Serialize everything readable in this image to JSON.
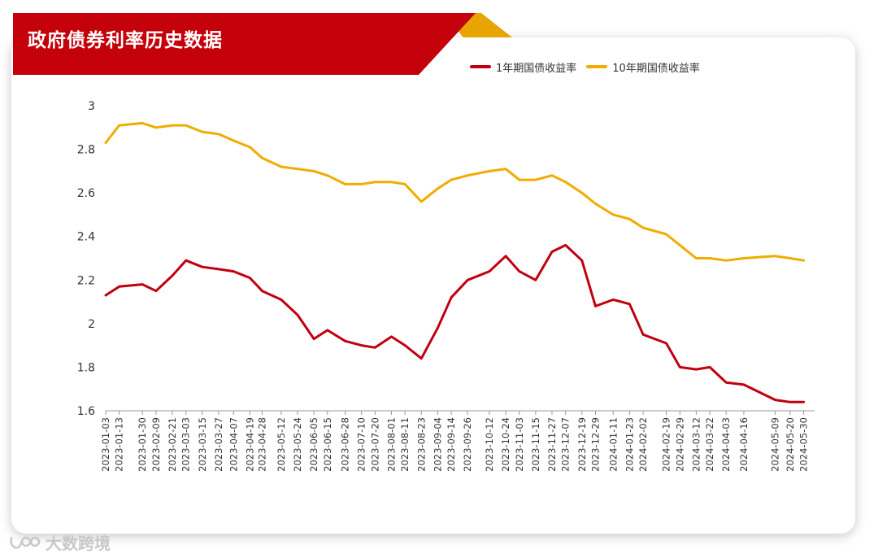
{
  "title": "政府债券利率历史数据",
  "watermark": "大数跨境",
  "colors": {
    "banner_red": "#c4000b",
    "banner_gold": "#e8a400",
    "series_1y": "#c0000f",
    "series_10y": "#f0ac00"
  },
  "chart_data": {
    "type": "line",
    "title": "政府债券利率历史数据",
    "xlabel": "",
    "ylabel": "",
    "ylim": [
      1.6,
      3
    ],
    "yticks": [
      "1.6",
      "1.8",
      "2",
      "2.2",
      "2.4",
      "2.6",
      "2.8",
      "3"
    ],
    "grid": false,
    "legend_position": "top-right",
    "x_tick_labels": [
      "2023-01-03",
      "2023-01-13",
      "2023-01-30",
      "2023-02-09",
      "2023-02-21",
      "2023-03-03",
      "2023-03-15",
      "2023-03-27",
      "2023-04-07",
      "2023-04-19",
      "2023-04-28",
      "2023-05-12",
      "2023-05-24",
      "2023-06-05",
      "2023-06-15",
      "2023-06-28",
      "2023-07-10",
      "2023-07-20",
      "2023-08-01",
      "2023-08-11",
      "2023-08-23",
      "2023-09-04",
      "2023-09-14",
      "2023-09-26",
      "2023-10-12",
      "2023-10-24",
      "2023-11-03",
      "2023-11-15",
      "2023-11-27",
      "2023-12-07",
      "2023-12-19",
      "2023-12-29",
      "2024-01-11",
      "2024-01-23",
      "2024-02-02",
      "2024-02-19",
      "2024-02-29",
      "2024-03-12",
      "2024-03-22",
      "2024-04-03",
      "2024-04-16",
      "2024-05-09",
      "2024-05-20",
      "2024-05-30"
    ],
    "x": [
      "2023-01-03",
      "2023-01-13",
      "2023-01-30",
      "2023-02-09",
      "2023-02-21",
      "2023-03-03",
      "2023-03-15",
      "2023-03-27",
      "2023-04-07",
      "2023-04-19",
      "2023-04-28",
      "2023-05-12",
      "2023-05-24",
      "2023-06-05",
      "2023-06-15",
      "2023-06-28",
      "2023-07-10",
      "2023-07-20",
      "2023-08-01",
      "2023-08-11",
      "2023-08-23",
      "2023-09-04",
      "2023-09-14",
      "2023-09-26",
      "2023-10-12",
      "2023-10-24",
      "2023-11-03",
      "2023-11-15",
      "2023-11-27",
      "2023-12-07",
      "2023-12-19",
      "2023-12-29",
      "2024-01-11",
      "2024-01-23",
      "2024-02-02",
      "2024-02-19",
      "2024-02-29",
      "2024-03-12",
      "2024-03-22",
      "2024-04-03",
      "2024-04-16",
      "2024-05-09",
      "2024-05-20",
      "2024-05-30"
    ],
    "series": [
      {
        "name": "1年期国债收益率",
        "color": "#c0000f",
        "values": [
          2.13,
          2.17,
          2.18,
          2.15,
          2.22,
          2.29,
          2.26,
          2.25,
          2.24,
          2.21,
          2.15,
          2.11,
          2.04,
          1.93,
          1.97,
          1.92,
          1.9,
          1.89,
          1.94,
          1.9,
          1.84,
          1.98,
          2.12,
          2.2,
          2.24,
          2.31,
          2.24,
          2.2,
          2.33,
          2.36,
          2.29,
          2.08,
          2.11,
          2.09,
          1.95,
          1.91,
          1.8,
          1.79,
          1.8,
          1.73,
          1.72,
          1.65,
          1.64,
          1.64
        ]
      },
      {
        "name": "10年期国债收益率",
        "color": "#f0ac00",
        "values": [
          2.83,
          2.91,
          2.92,
          2.9,
          2.91,
          2.91,
          2.88,
          2.87,
          2.84,
          2.81,
          2.76,
          2.72,
          2.71,
          2.7,
          2.68,
          2.64,
          2.64,
          2.65,
          2.65,
          2.64,
          2.56,
          2.62,
          2.66,
          2.68,
          2.7,
          2.71,
          2.66,
          2.66,
          2.68,
          2.65,
          2.6,
          2.55,
          2.5,
          2.48,
          2.44,
          2.41,
          2.36,
          2.3,
          2.3,
          2.29,
          2.3,
          2.31,
          2.3,
          2.29
        ]
      }
    ]
  }
}
